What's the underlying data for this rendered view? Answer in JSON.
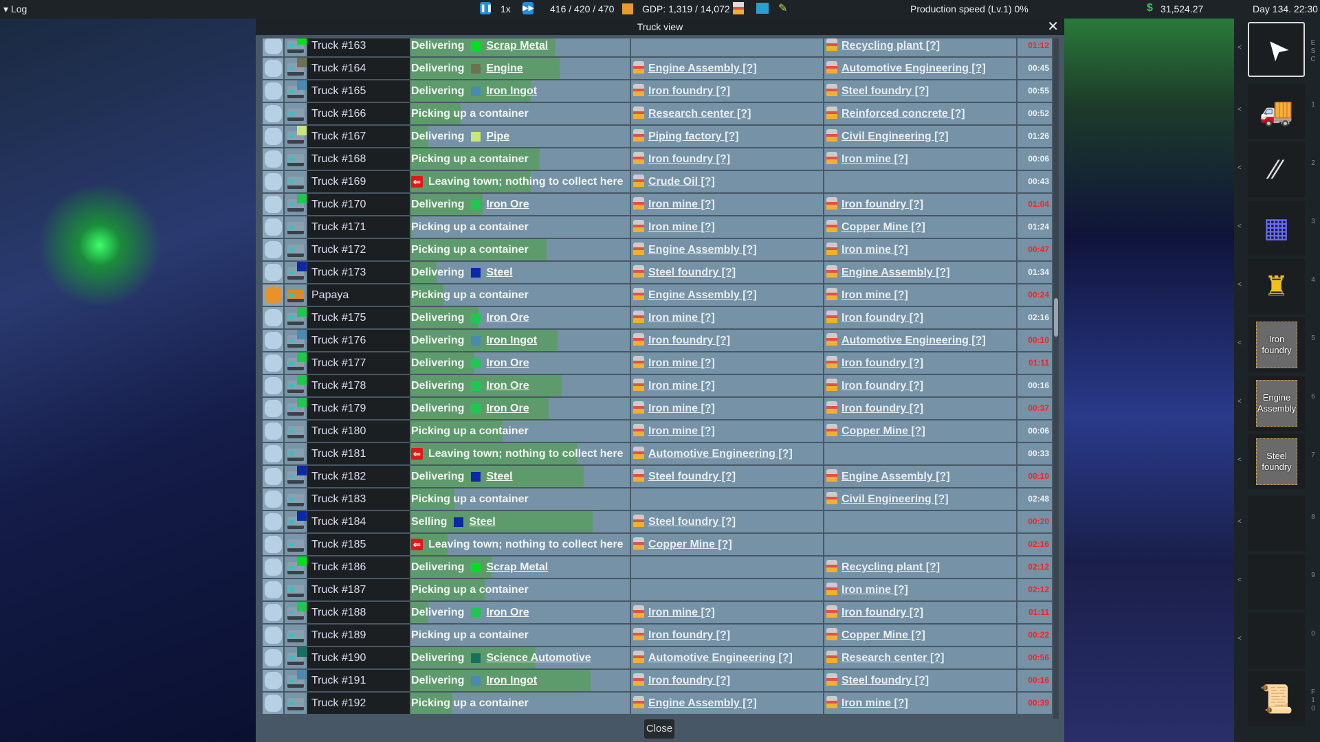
{
  "topbar": {
    "log_label": "Log",
    "speed": "1x",
    "vehicles": "416 / 420 / 470",
    "gdp": "GDP: 1,319 / 14,072",
    "production": "Production speed (Lv.1) 0%",
    "money": "31,524.27",
    "date": "Day 134. 22:30"
  },
  "dialog": {
    "title": "Truck view",
    "close_label": "Close"
  },
  "colors": {
    "progress": "#5e9b6c",
    "row_bg": "#7592a6",
    "late": "#ff2020",
    "accent": "#1e8fe0"
  },
  "cargo_colors": {
    "Scrap Metal": "#00e020",
    "Engine": "#6f7050",
    "Iron Ingot": "#4a8ab0",
    "Pipe": "#c8e67a",
    "Iron Ore": "#1ec850",
    "Steel": "#0a28a8",
    "Science Automotive": "#157060"
  },
  "rows": [
    {
      "name": "Truck #163",
      "action": "Delivering",
      "cargo": "Scrap Metal",
      "progress": 0.66,
      "from": "",
      "to": "Recycling plant [?]",
      "time": "01:12",
      "late": true
    },
    {
      "name": "Truck #164",
      "action": "Delivering",
      "cargo": "Engine",
      "progress": 0.68,
      "from": "Engine Assembly [?]",
      "to": "Automotive Engineering [?]",
      "time": "00:45",
      "late": false
    },
    {
      "name": "Truck #165",
      "action": "Delivering",
      "cargo": "Iron Ingot",
      "progress": 0.55,
      "from": "Iron foundry [?]",
      "to": "Steel foundry [?]",
      "time": "00:55",
      "late": false
    },
    {
      "name": "Truck #166",
      "action": "Picking up a container",
      "cargo": "",
      "progress": 0.23,
      "from": "Research center [?]",
      "to": "Reinforced concrete [?]",
      "time": "00:52",
      "late": false
    },
    {
      "name": "Truck #167",
      "action": "Delivering",
      "cargo": "Pipe",
      "progress": 0.08,
      "from": "Piping factory [?]",
      "to": "Civil Engineering [?]",
      "time": "01:26",
      "late": false
    },
    {
      "name": "Truck #168",
      "action": "Picking up a container",
      "cargo": "",
      "progress": 0.59,
      "from": "Iron foundry [?]",
      "to": "Iron mine [?]",
      "time": "00:06",
      "late": false
    },
    {
      "name": "Truck #169",
      "action": "Leaving town; nothing to collect here",
      "leaving": true,
      "cargo": "",
      "progress": 0.55,
      "from": "Crude Oil [?]",
      "to": "",
      "time": "00:43",
      "late": false
    },
    {
      "name": "Truck #170",
      "action": "Delivering",
      "cargo": "Iron Ore",
      "progress": 0.33,
      "from": "Iron mine [?]",
      "to": "Iron foundry [?]",
      "time": "01:04",
      "late": true
    },
    {
      "name": "Truck #171",
      "action": "Picking up a container",
      "cargo": "",
      "progress": 0.01,
      "from": "Iron mine [?]",
      "to": "Copper Mine [?]",
      "time": "01:24",
      "late": false
    },
    {
      "name": "Truck #172",
      "action": "Picking up a container",
      "cargo": "",
      "progress": 0.62,
      "from": "Engine Assembly [?]",
      "to": "Iron mine [?]",
      "time": "00:47",
      "late": true
    },
    {
      "name": "Truck #173",
      "action": "Delivering",
      "cargo": "Steel",
      "progress": 0.12,
      "from": "Steel foundry [?]",
      "to": "Engine Assembly [?]",
      "time": "01:34",
      "late": false
    },
    {
      "name": "Papaya",
      "special": true,
      "action": "Picking up a container",
      "cargo": "",
      "progress": 0.15,
      "from": "Engine Assembly [?]",
      "to": "Iron mine [?]",
      "time": "00:24",
      "late": true
    },
    {
      "name": "Truck #175",
      "action": "Delivering",
      "cargo": "Iron Ore",
      "progress": 0.31,
      "from": "Iron mine [?]",
      "to": "Iron foundry [?]",
      "time": "02:16",
      "late": false
    },
    {
      "name": "Truck #176",
      "action": "Delivering",
      "cargo": "Iron Ingot",
      "progress": 0.67,
      "from": "Iron foundry [?]",
      "to": "Automotive Engineering [?]",
      "time": "00:10",
      "late": true
    },
    {
      "name": "Truck #177",
      "action": "Delivering",
      "cargo": "Iron Ore",
      "progress": 0.29,
      "from": "Iron mine [?]",
      "to": "Iron foundry [?]",
      "time": "01:11",
      "late": true
    },
    {
      "name": "Truck #178",
      "action": "Delivering",
      "cargo": "Iron Ore",
      "progress": 0.69,
      "from": "Iron mine [?]",
      "to": "Iron foundry [?]",
      "time": "00:16",
      "late": false
    },
    {
      "name": "Truck #179",
      "action": "Delivering",
      "cargo": "Iron Ore",
      "progress": 0.63,
      "from": "Iron mine [?]",
      "to": "Iron foundry [?]",
      "time": "00:37",
      "late": true
    },
    {
      "name": "Truck #180",
      "action": "Picking up a container",
      "cargo": "",
      "progress": 0.42,
      "from": "Iron mine [?]",
      "to": "Copper Mine [?]",
      "time": "00:06",
      "late": false
    },
    {
      "name": "Truck #181",
      "action": "Leaving town; nothing to collect here",
      "leaving": true,
      "cargo": "",
      "progress": 0.76,
      "from": "Automotive Engineering [?]",
      "to": "",
      "time": "00:33",
      "late": false
    },
    {
      "name": "Truck #182",
      "action": "Delivering",
      "cargo": "Steel",
      "progress": 0.79,
      "from": "Steel foundry [?]",
      "to": "Engine Assembly [?]",
      "time": "00:10",
      "late": true
    },
    {
      "name": "Truck #183",
      "action": "Picking up a container",
      "cargo": "",
      "progress": 0.2,
      "from": "",
      "to": "Civil Engineering [?]",
      "time": "02:48",
      "late": false
    },
    {
      "name": "Truck #184",
      "action": "Selling",
      "cargo": "Steel",
      "progress": 0.83,
      "from": "Steel foundry [?]",
      "to": "",
      "time": "00:20",
      "late": true
    },
    {
      "name": "Truck #185",
      "action": "Leaving town; nothing to collect here",
      "leaving": true,
      "cargo": "",
      "progress": 0.17,
      "from": "Copper Mine [?]",
      "to": "",
      "time": "02:16",
      "late": true
    },
    {
      "name": "Truck #186",
      "action": "Delivering",
      "cargo": "Scrap Metal",
      "progress": 0.37,
      "from": "",
      "to": "Recycling plant [?]",
      "time": "02:12",
      "late": true
    },
    {
      "name": "Truck #187",
      "action": "Picking up a container",
      "cargo": "",
      "progress": 0.34,
      "from": "",
      "to": "Iron mine [?]",
      "time": "02:12",
      "late": true
    },
    {
      "name": "Truck #188",
      "action": "Delivering",
      "cargo": "Iron Ore",
      "progress": 0.08,
      "from": "Iron mine [?]",
      "to": "Iron foundry [?]",
      "time": "01:11",
      "late": true
    },
    {
      "name": "Truck #189",
      "action": "Picking up a container",
      "cargo": "",
      "progress": 0.0,
      "from": "Iron foundry [?]",
      "to": "Copper Mine [?]",
      "time": "00:22",
      "late": true
    },
    {
      "name": "Truck #190",
      "action": "Delivering",
      "cargo": "Science Automotive",
      "progress": 0.57,
      "from": "Automotive Engineering [?]",
      "to": "Research center [?]",
      "time": "00:56",
      "late": true
    },
    {
      "name": "Truck #191",
      "action": "Delivering",
      "cargo": "Iron Ingot",
      "progress": 0.82,
      "from": "Iron foundry [?]",
      "to": "Steel foundry [?]",
      "time": "00:16",
      "late": true
    },
    {
      "name": "Truck #192",
      "action": "Picking up a container",
      "cargo": "",
      "progress": 0.19,
      "from": "Engine Assembly [?]",
      "to": "Iron mine [?]",
      "time": "00:39",
      "late": true
    }
  ],
  "sidebar": {
    "items": [
      {
        "key": "ESC",
        "icon": "cursor-icon"
      },
      {
        "key": "1",
        "icon": "truck-icon"
      },
      {
        "key": "2",
        "icon": "road-icon"
      },
      {
        "key": "3",
        "icon": "depot-icon"
      },
      {
        "key": "4",
        "icon": "building-icon"
      },
      {
        "key": "5",
        "label": "Iron foundry"
      },
      {
        "key": "6",
        "label": "Engine Assembly"
      },
      {
        "key": "7",
        "label": "Steel foundry"
      },
      {
        "key": "8"
      },
      {
        "key": "9"
      },
      {
        "key": "0"
      },
      {
        "key": "F10",
        "icon": "scroll-icon"
      }
    ]
  }
}
